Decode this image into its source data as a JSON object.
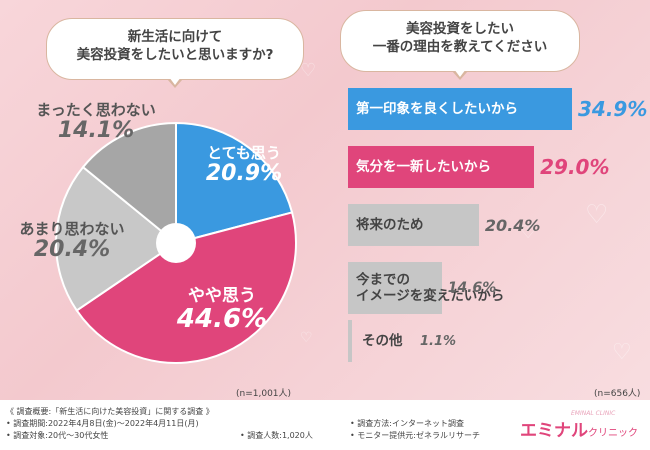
{
  "left_question": {
    "line1": "新生活に向けて",
    "line2": "美容投資をしたいと思いますか?"
  },
  "right_question": {
    "line1": "美容投資をしたい",
    "line2": "一番の理由を教えてください"
  },
  "colors": {
    "blue": "#3a99e0",
    "pink": "#e0457b",
    "grey_light": "#c8c8c8",
    "grey_dark": "#a6a6a6",
    "bar_grey": "#c6c6c6"
  },
  "chart_data": [
    {
      "type": "pie",
      "title": "新生活に向けて美容投資をしたいと思いますか?",
      "categories": [
        "とても思う",
        "やや思う",
        "あまり思わない",
        "まったく思わない"
      ],
      "values": [
        20.9,
        44.6,
        20.4,
        14.1
      ],
      "value_labels": [
        "20.9%",
        "44.6%",
        "20.4%",
        "14.1%"
      ],
      "n_label": "(n=1,001人)"
    },
    {
      "type": "bar",
      "title": "美容投資をしたい一番の理由を教えてください",
      "categories": [
        "第一印象を良くしたいから",
        "気分を一新したいから",
        "将来のため",
        "今までのイメージを変えたいから",
        "その他"
      ],
      "category_lines": [
        [
          "第一印象を良くしたいから"
        ],
        [
          "気分を一新したいから"
        ],
        [
          "将来のため"
        ],
        [
          "今までの",
          "イメージを変えたいから"
        ],
        [
          "その他"
        ]
      ],
      "values": [
        34.9,
        29.0,
        20.4,
        14.6,
        1.1
      ],
      "value_labels": [
        "34.9%",
        "29.0%",
        "20.4%",
        "14.6%",
        "1.1%"
      ],
      "n_label": "(n=656人)"
    }
  ],
  "footer": {
    "survey_title": "《 調査概要:「新生活に向けた美容投資」に関する調査 》",
    "period": "• 調査期間:2022年4月8日(金)〜2022年4月11日(月)",
    "target": "• 調査対象:20代〜30代女性",
    "count": "• 調査人数:1,020人",
    "method": "• 調査方法:インターネット調査",
    "provider": "• モニター提供元:ゼネラルリサーチ"
  },
  "brand": {
    "name_main": "エミナル",
    "name_small": "クリニック",
    "sub": "EMINAL CLINIC"
  }
}
